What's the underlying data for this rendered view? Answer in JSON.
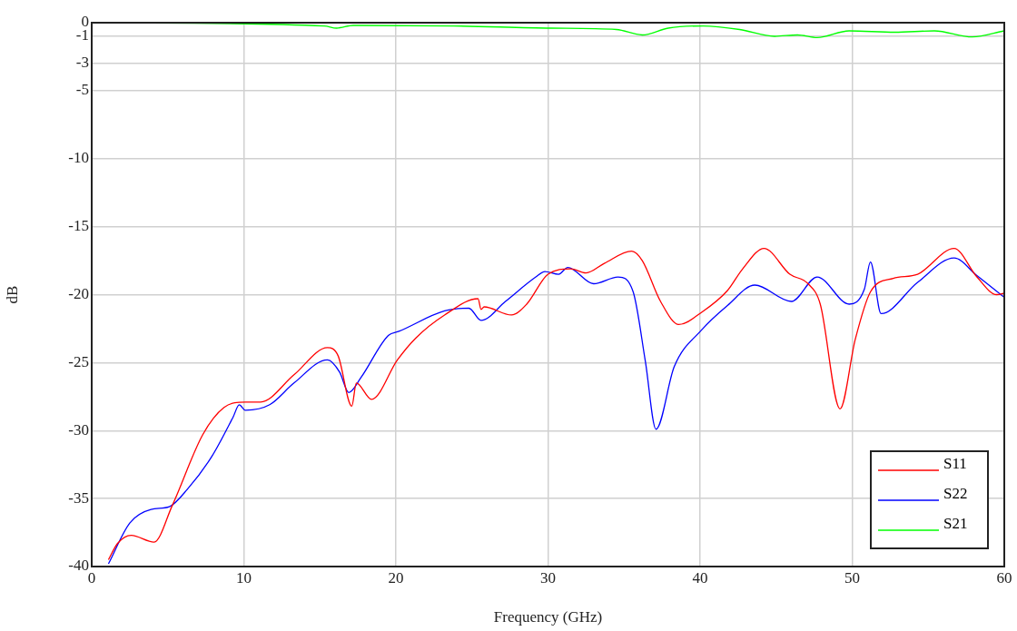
{
  "chart_data": {
    "type": "line",
    "xlabel": "Frequency (GHz)",
    "ylabel": "dB",
    "xlim": [
      0,
      60
    ],
    "xticks": [
      0,
      10,
      20,
      30,
      40,
      50,
      60
    ],
    "ylim": [
      -40,
      0
    ],
    "yticks": [
      -40,
      -35,
      -30,
      -25,
      -20,
      -15,
      -10,
      -5,
      -3,
      -1,
      0
    ],
    "grid": true,
    "legend": "bottom right",
    "marker": "none",
    "line_style": "solid",
    "series": [
      {
        "name": "S11",
        "color": "#ff0000",
        "x": [
          1.1,
          1.7,
          2.6,
          4.1,
          5.3,
          7.3,
          8.7,
          10.1,
          11.1,
          13.3,
          15.5,
          16.2,
          17.1,
          17.4,
          18.4,
          20.1,
          21.3,
          23.2,
          25.4,
          25.6,
          25.8,
          27.6,
          28.6,
          30.0,
          31.5,
          32.5,
          33.7,
          35.5,
          36.2,
          37.4,
          38.6,
          40.1,
          41.8,
          42.8,
          44.2,
          45.9,
          47.1,
          47.9,
          49.2,
          50.2,
          51.2,
          52.7,
          54.3,
          56.7,
          58.2,
          59.5,
          60
        ],
        "values": [
          -39.5,
          -38.3,
          -37.7,
          -38.2,
          -35.5,
          -30.3,
          -28.3,
          -27.9,
          -27.9,
          -25.9,
          -23.9,
          -24.5,
          -28.2,
          -26.5,
          -27.7,
          -24.8,
          -23.2,
          -21.5,
          -20.3,
          -21.1,
          -20.9,
          -21.5,
          -20.7,
          -18.5,
          -18.1,
          -18.4,
          -17.7,
          -16.8,
          -17.5,
          -20.5,
          -22.2,
          -21.3,
          -19.7,
          -18.1,
          -16.6,
          -18.5,
          -19.2,
          -20.7,
          -28.4,
          -23.3,
          -19.8,
          -18.8,
          -18.5,
          -16.6,
          -18.7,
          -20.0,
          -19.9
        ]
      },
      {
        "name": "S22",
        "color": "#0000ff",
        "x": [
          1.1,
          2.5,
          3.9,
          5.1,
          6.3,
          7.9,
          9.3,
          9.7,
          10.1,
          11.7,
          13.3,
          15.5,
          16.3,
          16.9,
          17.7,
          19.5,
          20.2,
          23.2,
          24.8,
          25.6,
          27.2,
          29.2,
          29.8,
          30.7,
          31.3,
          33.0,
          34.6,
          35.6,
          36.4,
          37.1,
          38.3,
          40.1,
          41.8,
          43.6,
          46.0,
          47.7,
          49.8,
          50.8,
          51.2,
          51.9,
          54.3,
          56.7,
          58.2,
          60
        ],
        "values": [
          -39.8,
          -36.8,
          -35.8,
          -35.6,
          -34.3,
          -31.9,
          -29.0,
          -28.1,
          -28.5,
          -28.1,
          -26.5,
          -24.8,
          -25.7,
          -27.2,
          -26.1,
          -23.0,
          -22.7,
          -21.2,
          -21.0,
          -21.9,
          -20.5,
          -18.7,
          -18.3,
          -18.5,
          -18.0,
          -19.2,
          -18.7,
          -19.8,
          -24.9,
          -29.9,
          -25.3,
          -22.6,
          -20.8,
          -19.3,
          -20.5,
          -18.7,
          -20.7,
          -19.6,
          -17.6,
          -21.4,
          -19.1,
          -17.3,
          -18.6,
          -20.2
        ]
      },
      {
        "name": "S21",
        "color": "#00ff00",
        "x": [
          1,
          15.3,
          16.1,
          17.2,
          23.8,
          30.2,
          34.5,
          36.2,
          37.9,
          40.2,
          42.6,
          44.9,
          46.4,
          47.7,
          49.8,
          52.8,
          55.4,
          57.9,
          60
        ],
        "values": [
          0,
          -0.24,
          -0.4,
          -0.2,
          -0.24,
          -0.4,
          -0.5,
          -0.9,
          -0.4,
          -0.24,
          -0.5,
          -1.0,
          -0.9,
          -1.1,
          -0.6,
          -0.7,
          -0.6,
          -1.05,
          -0.6
        ]
      }
    ]
  }
}
